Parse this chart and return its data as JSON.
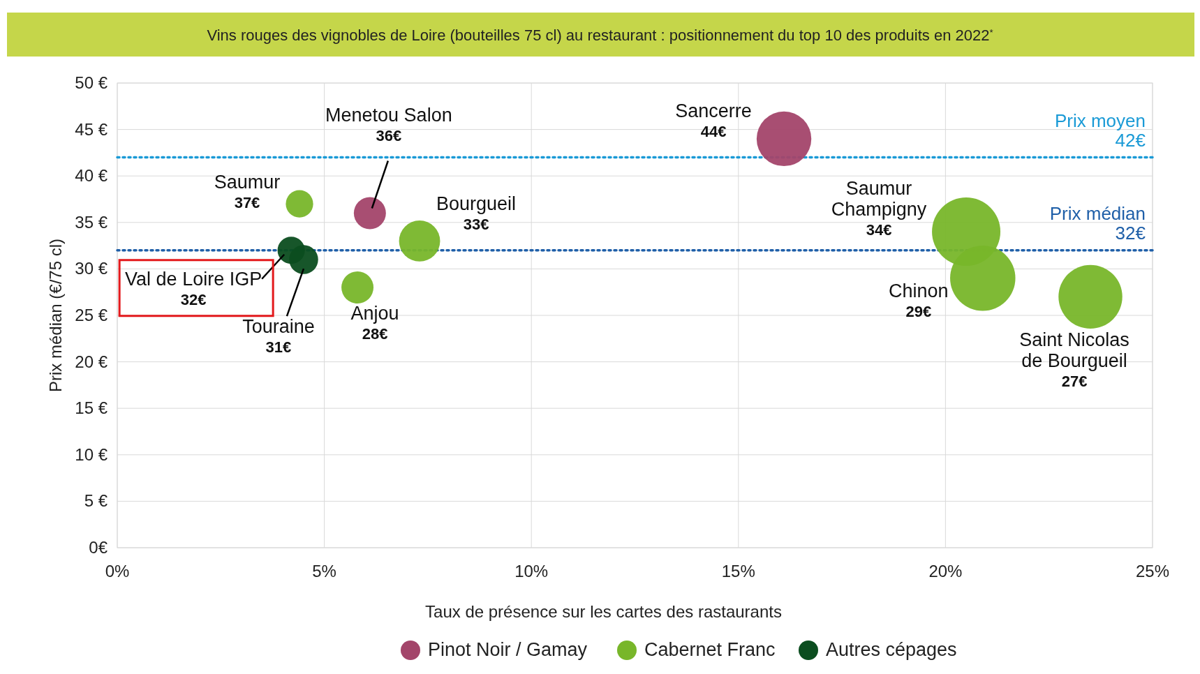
{
  "chart_data": {
    "type": "bubble",
    "title": "Vins rouges des vignobles de Loire (bouteilles 75 cl) au restaurant : positionnement du top 10 des produits en 2022$^{*}$",
    "xlabel": "Taux de présence sur les cartes des rastaurants",
    "ylabel": "Prix médian (€/75 cl)",
    "xlim": [
      0,
      25
    ],
    "xticks": [
      {
        "value": 0,
        "label": "0%"
      },
      {
        "value": 5,
        "label": "5%"
      },
      {
        "value": 10,
        "label": "10%"
      },
      {
        "value": 15,
        "label": "15%"
      },
      {
        "value": 20,
        "label": "20%"
      },
      {
        "value": 25,
        "label": "25%"
      }
    ],
    "ylim": [
      0,
      50
    ],
    "yticks": [
      {
        "value": 0,
        "label": "0€"
      },
      {
        "value": 5,
        "label": "5 €"
      },
      {
        "value": 10,
        "label": "10 €"
      },
      {
        "value": 15,
        "label": "15 €"
      },
      {
        "value": 20,
        "label": "20 €"
      },
      {
        "value": 25,
        "label": "25 €"
      },
      {
        "value": 30,
        "label": "30 €"
      },
      {
        "value": 35,
        "label": "35 €"
      },
      {
        "value": 40,
        "label": "40 €"
      },
      {
        "value": 45,
        "label": "45 €"
      },
      {
        "value": 50,
        "label": "50 €"
      }
    ],
    "grid": true,
    "legend": "bottom",
    "series": [
      {
        "name": "Pinot Noir / Gamay",
        "color": "#a3456a",
        "x": [
          6.1,
          16.1
        ],
        "values": [
          36,
          44
        ],
        "sizes": [
          0.22,
          0.64
        ]
      },
      {
        "name": "Cabernet Franc",
        "color": "#78b62a",
        "x": [
          4.4,
          7.3,
          5.8,
          20.5,
          20.9,
          23.5
        ],
        "values": [
          37,
          33,
          28,
          34,
          29,
          27
        ],
        "sizes": [
          0.16,
          0.36,
          0.22,
          1,
          0.91,
          0.87
        ]
      },
      {
        "name": "Autres cépages",
        "color": "#0b4d1f",
        "x": [
          4.2,
          4.5
        ],
        "values": [
          32,
          31
        ],
        "sizes": [
          0.16,
          0.18
        ]
      }
    ],
    "annotations": [
      "Menetou Salon\n36€",
      "Sancerre\n44€",
      "Saumur\n37€",
      "Bourgueil\n33€",
      "Anjou\n28€",
      "Saumur\nChampigny\n34€",
      "Chinon\n29€",
      "Saint Nicolas\nde Bourgueil\n27€",
      "Val de Loire IGP\n32€",
      "Touraine\n31€"
    ],
    "ref_lines": [
      {
        "axis": "y",
        "value": 42,
        "label": "Prix moyen\n42€",
        "color": "#1a9ad6",
        "line_style": "dotted"
      },
      {
        "axis": "y",
        "value": 32,
        "label": "Prix médian\n32€",
        "color": "#1f5fa8",
        "line_style": "dotted"
      }
    ]
  }
}
